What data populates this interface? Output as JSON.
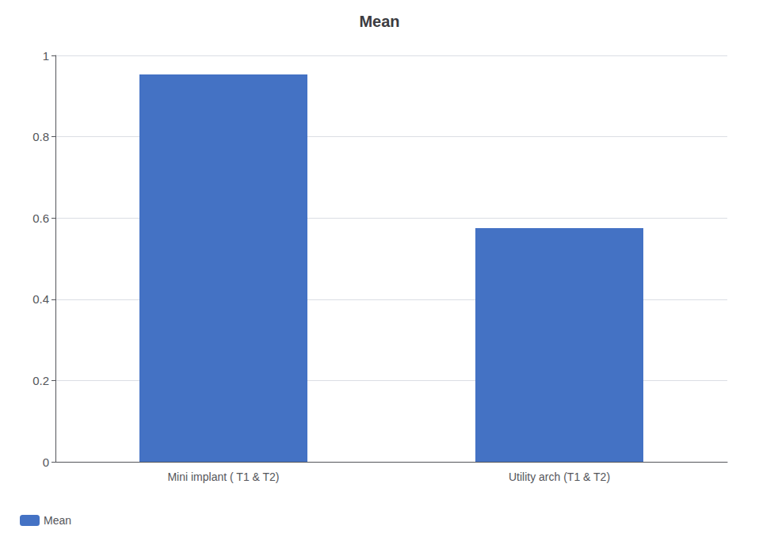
{
  "chart_data": {
    "type": "bar",
    "title": "Mean",
    "categories": [
      "Mini implant ( T1 & T2)",
      "Utility arch (T1 & T2)"
    ],
    "series": [
      {
        "name": "Mean",
        "color": "#4472C4",
        "values": [
          0.953,
          0.575
        ]
      }
    ],
    "ylim": [
      0,
      1.0
    ],
    "yticks": [
      0,
      0.2,
      0.4,
      0.6,
      0.8,
      1
    ],
    "grid": true,
    "legend": "lower left"
  }
}
